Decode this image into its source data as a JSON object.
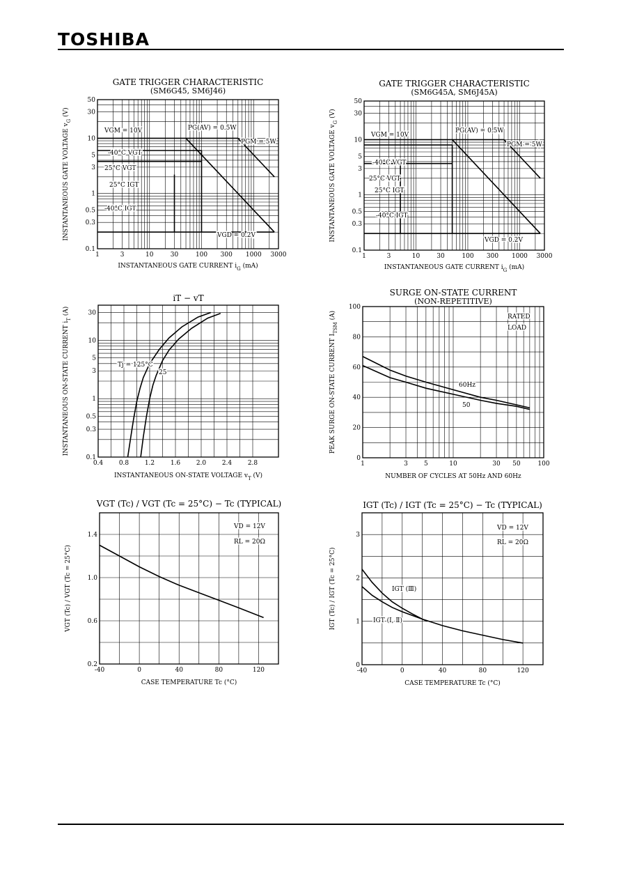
{
  "header": {
    "brand": "TOSHIBA"
  },
  "chart_data": [
    {
      "type": "line",
      "title": "GATE TRIGGER CHARACTERISTIC",
      "subtitle": "(SM6G45, SM6J46)",
      "xlabel": "INSTANTANEOUS GATE CURRENT",
      "xsym": "i",
      "xsub": "G",
      "xunit": "(mA)",
      "ylabel": "INSTANTANEOUS GATE VOLTAGE",
      "ysym": "v",
      "ysub": "G",
      "yunit": "(V)",
      "xscale": "log",
      "yscale": "log",
      "xlim": [
        1,
        3000
      ],
      "ylim": [
        0.1,
        50
      ],
      "xticks": [
        "1",
        "3",
        "10",
        "30",
        "100",
        "300",
        "1000",
        "3000"
      ],
      "yticks": [
        "0.1",
        "0.3",
        "0.5",
        "1",
        "3",
        "5",
        "10",
        "30",
        "50"
      ],
      "labels": [
        "VGM = 10V",
        "PG(AV) = 0.5W",
        "PGM = 5W",
        "-40°C VGT",
        "25°C VGT",
        "25°C IGT",
        "-40°C IGT",
        "VGD = 0.2V"
      ],
      "series": [
        {
          "name": "VGM",
          "x": [
            1,
            500
          ],
          "y": [
            10,
            10
          ]
        },
        {
          "name": "PG(AV)",
          "x": [
            50,
            2500
          ],
          "y": [
            10,
            0.2
          ]
        },
        {
          "name": "PGM",
          "x": [
            500,
            2500
          ],
          "y": [
            10,
            2
          ]
        },
        {
          "name": "-40°C VGT",
          "x": [
            1,
            100
          ],
          "y": [
            6,
            6
          ]
        },
        {
          "name": "25°C VGT",
          "x": [
            1,
            100
          ],
          "y": [
            3.8,
            3.8
          ]
        },
        {
          "name": "25°C IGT",
          "x": [
            30,
            30
          ],
          "y": [
            0.2,
            2.2
          ]
        },
        {
          "name": "-40°C IGT",
          "x": [
            100,
            100
          ],
          "y": [
            0.2,
            6
          ]
        },
        {
          "name": "VGD",
          "x": [
            1,
            2500
          ],
          "y": [
            0.2,
            0.2
          ]
        }
      ]
    },
    {
      "type": "line",
      "title": "GATE TRIGGER CHARACTERISTIC",
      "subtitle": "(SM6G45A, SM6J45A)",
      "xlabel": "INSTANTANEOUS GATE CURRENT",
      "xsym": "i",
      "xsub": "G",
      "xunit": "(mA)",
      "ylabel": "INSTANTANEOUS GATE VOLTAGE",
      "ysym": "v",
      "ysub": "G",
      "yunit": "(V)",
      "xscale": "log",
      "yscale": "log",
      "xlim": [
        1,
        3000
      ],
      "ylim": [
        0.1,
        50
      ],
      "xticks": [
        "1",
        "3",
        "10",
        "30",
        "100",
        "300",
        "1000",
        "3000"
      ],
      "yticks": [
        "0.1",
        "0.3",
        "0.5",
        "1",
        "3",
        "5",
        "10",
        "30",
        "50"
      ],
      "labels": [
        "VGM = 10V",
        "PG(AV) = 0.5W",
        "PGM = 5W",
        "-40°C VGT",
        "25°C VGT",
        "25°C IGT",
        "-40°C IGT",
        "VGD = 0.2V"
      ],
      "series": [
        {
          "name": "VGM",
          "x": [
            1,
            500
          ],
          "y": [
            10,
            10
          ]
        },
        {
          "name": "PG(AV)",
          "x": [
            50,
            2500
          ],
          "y": [
            10,
            0.2
          ]
        },
        {
          "name": "PGM",
          "x": [
            500,
            2500
          ],
          "y": [
            10,
            2
          ]
        },
        {
          "name": "-40°C VGT",
          "x": [
            1,
            50
          ],
          "y": [
            8,
            8
          ]
        },
        {
          "name": "25°C VGT",
          "x": [
            1,
            50
          ],
          "y": [
            3.7,
            3.7
          ]
        },
        {
          "name": "25°C IGT",
          "x": [
            5,
            5
          ],
          "y": [
            0.2,
            3.7
          ]
        },
        {
          "name": "-40°C IGT",
          "x": [
            50,
            50
          ],
          "y": [
            0.2,
            8
          ]
        },
        {
          "name": "VGD",
          "x": [
            1,
            2500
          ],
          "y": [
            0.2,
            0.2
          ]
        }
      ]
    },
    {
      "type": "line",
      "title": "iT − vT",
      "xlabel": "INSTANTANEOUS ON-STATE VOLTAGE",
      "xsym": "v",
      "xsub": "T",
      "xunit": "(V)",
      "ylabel": "INSTANTANEOUS ON-STATE CURRENT",
      "ysym": "i",
      "ysub": "T",
      "yunit": "(A)",
      "xscale": "linear",
      "yscale": "log",
      "xlim": [
        0.4,
        3.2
      ],
      "ylim": [
        0.1,
        40
      ],
      "xticks": [
        "0.4",
        "0.8",
        "1.2",
        "1.6",
        "2.0",
        "2.4",
        "2.8"
      ],
      "yticks": [
        "0.1",
        "0.3",
        "0.5",
        "1",
        "3",
        "5",
        "10",
        "30"
      ],
      "labels": [
        "Tj = 125°C",
        "25"
      ],
      "series": [
        {
          "name": "Tj = 125°C",
          "x": [
            0.86,
            0.9,
            0.95,
            1.0,
            1.05,
            1.1,
            1.2,
            1.35,
            1.5,
            1.7,
            1.95,
            2.15
          ],
          "y": [
            0.1,
            0.2,
            0.45,
            0.9,
            1.5,
            2.3,
            4.0,
            7.0,
            11,
            17,
            25,
            30
          ]
        },
        {
          "name": "25",
          "x": [
            1.06,
            1.1,
            1.15,
            1.2,
            1.25,
            1.3,
            1.4,
            1.5,
            1.65,
            1.85,
            2.1,
            2.3
          ],
          "y": [
            0.1,
            0.22,
            0.5,
            1.0,
            1.7,
            2.5,
            4.5,
            6.8,
            10.5,
            16,
            24,
            29
          ]
        }
      ]
    },
    {
      "type": "line",
      "title": "SURGE ON-STATE CURRENT",
      "subtitle": "(NON-REPETITIVE)",
      "xlabel": "NUMBER OF CYCLES AT 50Hz AND 60Hz",
      "ylabel": "PEAK SURGE ON-STATE CURRENT",
      "ysym": "I",
      "ysub": "TSM",
      "yunit": "(A)",
      "xscale": "log",
      "yscale": "linear",
      "xlim": [
        1,
        100
      ],
      "ylim": [
        0,
        100
      ],
      "xticks": [
        "1",
        "3",
        "5",
        "10",
        "30",
        "50",
        "100"
      ],
      "yticks": [
        "0",
        "20",
        "40",
        "60",
        "80",
        "100"
      ],
      "labels": [
        "RATED",
        "LOAD",
        "60Hz",
        "50"
      ],
      "series": [
        {
          "name": "60Hz",
          "x": [
            1,
            2,
            3,
            5,
            10,
            20,
            30,
            50,
            70
          ],
          "y": [
            67,
            58,
            54,
            50,
            45,
            40,
            38,
            35,
            33
          ]
        },
        {
          "name": "50",
          "x": [
            1,
            2,
            3,
            5,
            10,
            20,
            30,
            50,
            70
          ],
          "y": [
            61,
            53,
            50,
            46,
            42,
            38,
            36,
            34,
            32
          ]
        }
      ]
    },
    {
      "type": "line",
      "title": "VGT (Tc) / VGT (Tc = 25°C) − Tc  (TYPICAL)",
      "xlabel": "CASE TEMPERATURE",
      "xsym": "Tc",
      "xunit": "(°C)",
      "ylabel": "VGT (Tc) / VGT (Tc = 25°C)",
      "xscale": "linear",
      "yscale": "linear",
      "xlim": [
        -40,
        140
      ],
      "ylim": [
        0.2,
        1.6
      ],
      "xticks": [
        "-40",
        "0",
        "40",
        "80",
        "120"
      ],
      "yticks": [
        "0.2",
        "0.6",
        "1.0",
        "1.4"
      ],
      "labels": [
        "VD = 12V",
        "RL = 20Ω"
      ],
      "series": [
        {
          "name": "VGT",
          "x": [
            -40,
            -20,
            0,
            20,
            40,
            60,
            80,
            100,
            125
          ],
          "y": [
            1.3,
            1.2,
            1.1,
            1.01,
            0.93,
            0.86,
            0.79,
            0.72,
            0.63
          ]
        }
      ]
    },
    {
      "type": "line",
      "title": "IGT (Tc) / IGT (Tc = 25°C) − Tc  (TYPICAL)",
      "xlabel": "CASE TEMPERATURE",
      "xsym": "Tc",
      "xunit": "(°C)",
      "ylabel": "IGT (Tc) / IGT (Tc = 25°C)",
      "xscale": "linear",
      "yscale": "linear",
      "xlim": [
        -40,
        140
      ],
      "ylim": [
        0,
        3.5
      ],
      "xticks": [
        "-40",
        "0",
        "40",
        "80",
        "120"
      ],
      "yticks": [
        "0",
        "1",
        "2",
        "3"
      ],
      "labels": [
        "VD = 12V",
        "RL = 20Ω",
        "IGT (Ⅲ)",
        "IGT (Ⅰ, Ⅱ)"
      ],
      "series": [
        {
          "name": "IGT (Ⅲ)",
          "x": [
            -40,
            -30,
            -20,
            -10,
            0,
            10,
            20,
            25
          ],
          "y": [
            2.2,
            1.9,
            1.65,
            1.45,
            1.3,
            1.17,
            1.05,
            1.0
          ]
        },
        {
          "name": "IGT (Ⅰ, Ⅱ)",
          "x": [
            -40,
            -30,
            -20,
            -10,
            0,
            20,
            40,
            60,
            80,
            100,
            120
          ],
          "y": [
            1.8,
            1.6,
            1.45,
            1.32,
            1.22,
            1.05,
            0.9,
            0.78,
            0.68,
            0.58,
            0.5
          ]
        }
      ]
    }
  ]
}
